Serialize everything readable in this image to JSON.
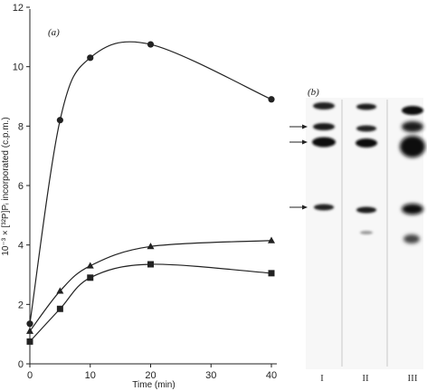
{
  "chart_data": {
    "type": "line",
    "panel_label": "(a)",
    "xlabel": "Time (min)",
    "ylabel": "10⁻³ × [³²P]Pᵢ incorporated (c.p.m.)",
    "xlim": [
      0,
      40
    ],
    "ylim": [
      0,
      12
    ],
    "x_ticks": [
      0,
      10,
      20,
      30,
      40
    ],
    "y_ticks": [
      0,
      2,
      4,
      6,
      8,
      10,
      12
    ],
    "grid": false,
    "series": [
      {
        "marker": "circle",
        "x": [
          0,
          5,
          10,
          20,
          40
        ],
        "y": [
          1.35,
          8.2,
          10.3,
          10.75,
          8.9
        ]
      },
      {
        "marker": "triangle",
        "x": [
          0,
          5,
          10,
          20,
          40
        ],
        "y": [
          1.1,
          2.45,
          3.3,
          3.95,
          4.15
        ]
      },
      {
        "marker": "square",
        "x": [
          0,
          5,
          10,
          20,
          40
        ],
        "y": [
          0.75,
          1.85,
          2.9,
          3.35,
          3.05
        ]
      }
    ]
  },
  "gel": {
    "panel_label": "(b)",
    "lanes": [
      "I",
      "II",
      "III"
    ]
  }
}
